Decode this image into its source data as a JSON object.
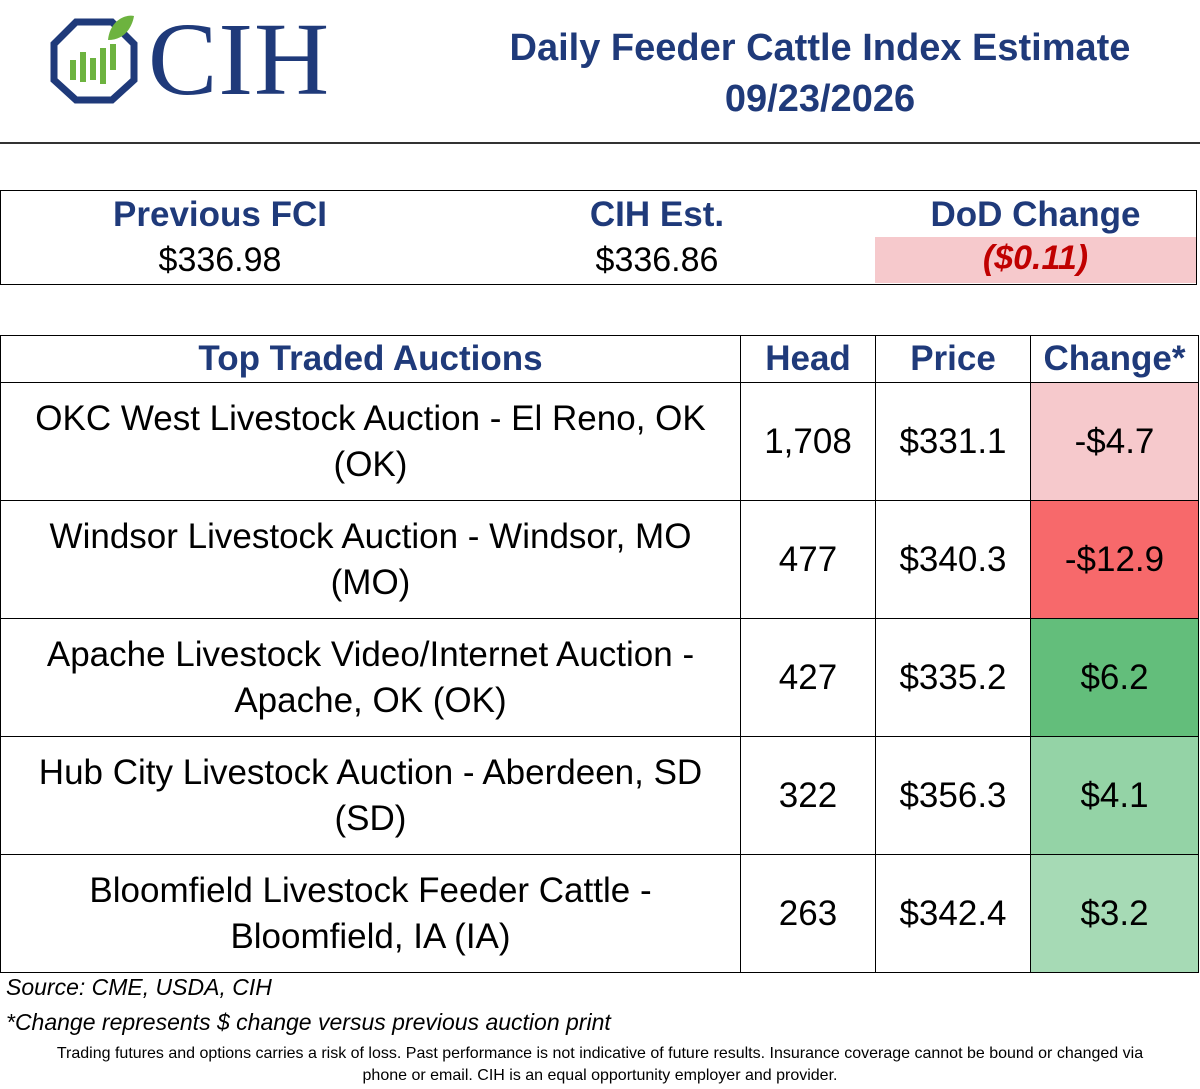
{
  "logo": {
    "text": "CIH",
    "colors": {
      "navy": "#1f3a7a",
      "green": "#6db33f"
    }
  },
  "header": {
    "title": "Daily Feeder Cattle Index Estimate",
    "date": "09/23/2026"
  },
  "summary": [
    {
      "label": "Previous FCI",
      "value": "$336.98"
    },
    {
      "label": "CIH Est.",
      "value": "$336.86"
    },
    {
      "label": "DoD Change",
      "value": "($0.11)"
    }
  ],
  "table": {
    "headers": {
      "auction": "Top Traded Auctions",
      "head": "Head",
      "price": "Price",
      "change": "Change*"
    },
    "rows": [
      {
        "auction": "OKC West Livestock Auction  - El Reno, OK (OK)",
        "head": "1,708",
        "price": "$331.1",
        "change": "-$4.7",
        "change_color": "#f6c9cc"
      },
      {
        "auction": "Windsor Livestock Auction - Windsor, MO (MO)",
        "head": "477",
        "price": "$340.3",
        "change": "-$12.9",
        "change_color": "#f7696b"
      },
      {
        "auction": "Apache Livestock Video/Internet Auction - Apache, OK (OK)",
        "head": "427",
        "price": "$335.2",
        "change": "$6.2",
        "change_color": "#63be7b"
      },
      {
        "auction": "Hub City Livestock Auction - Aberdeen, SD (SD)",
        "head": "322",
        "price": "$356.3",
        "change": "$4.1",
        "change_color": "#94d3a6"
      },
      {
        "auction": "Bloomfield Livestock Feeder Cattle - Bloomfield, IA (IA)",
        "head": "263",
        "price": "$342.4",
        "change": "$3.2",
        "change_color": "#a6dab5"
      }
    ]
  },
  "footer": {
    "source": "Source: CME, USDA, CIH",
    "note": "*Change represents $ change versus previous auction print",
    "disclaimer_line1": "Trading futures and options carries a risk of loss. Past performance is not indicative of future results. Insurance coverage cannot be bound or changed via",
    "disclaimer_line2": "phone or email. CIH is an equal opportunity employer and provider."
  }
}
